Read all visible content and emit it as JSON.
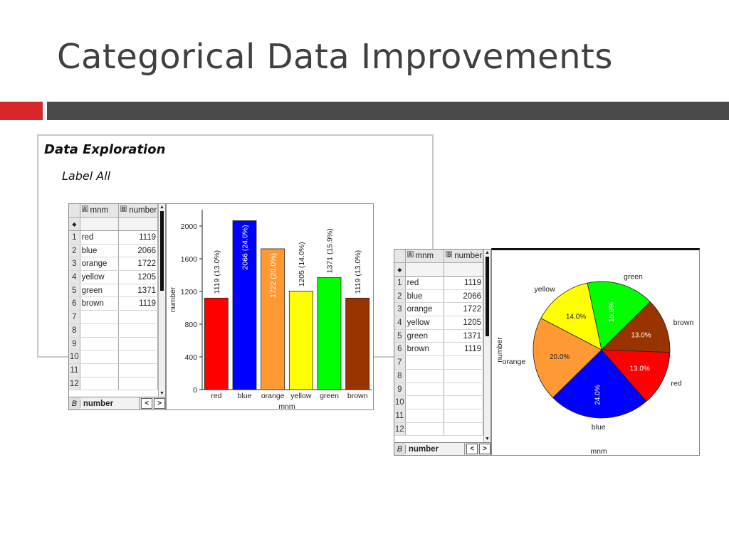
{
  "slide": {
    "title": "Categorical Data Improvements",
    "panel_heading": "Data Exploration",
    "panel_subheading": "Label All"
  },
  "colors": {
    "accent_red": "#d9262a",
    "header_bar": "#4a4a4a",
    "red": "#ff0000",
    "blue": "#0000ff",
    "orange": "#ff9933",
    "yellow": "#ffff00",
    "green": "#00ff00",
    "brown": "#993300"
  },
  "spreadsheet": {
    "col_a_key": "A",
    "col_a_name": "mnm",
    "col_b_key": "B",
    "col_b_name": "number",
    "formula_marker": "◆",
    "rows": [
      {
        "n": "1",
        "mnm": "red",
        "number": "1119"
      },
      {
        "n": "2",
        "mnm": "blue",
        "number": "2066"
      },
      {
        "n": "3",
        "mnm": "orange",
        "number": "1722"
      },
      {
        "n": "4",
        "mnm": "yellow",
        "number": "1205"
      },
      {
        "n": "5",
        "mnm": "green",
        "number": "1371"
      },
      {
        "n": "6",
        "mnm": "brown",
        "number": "1119"
      },
      {
        "n": "7",
        "mnm": "",
        "number": ""
      },
      {
        "n": "8",
        "mnm": "",
        "number": ""
      },
      {
        "n": "9",
        "mnm": "",
        "number": ""
      },
      {
        "n": "10",
        "mnm": "",
        "number": ""
      },
      {
        "n": "11",
        "mnm": "",
        "number": ""
      },
      {
        "n": "12",
        "mnm": "",
        "number": ""
      }
    ],
    "footer_cell_ref": "B",
    "footer_cell_name": "number",
    "nav_prev": "<",
    "nav_next": ">"
  },
  "chart_data": [
    {
      "type": "bar",
      "categories": [
        "red",
        "blue",
        "orange",
        "yellow",
        "green",
        "brown"
      ],
      "values": [
        1119,
        2066,
        1722,
        1205,
        1371,
        1119
      ],
      "data_labels": [
        "1119 (13.0%)",
        "2066 (24.0%)",
        "1722 (20.0%)",
        "1205 (14.0%)",
        "1371 (15.9%)",
        "1119 (13.0%)"
      ],
      "colors": [
        "#ff0000",
        "#0000ff",
        "#ff9933",
        "#ffff00",
        "#00ff00",
        "#993300"
      ],
      "xlabel": "mnm",
      "ylabel": "number",
      "ylim": [
        0,
        2200
      ],
      "yticks": [
        0,
        400,
        800,
        1200,
        1600,
        2000
      ],
      "grid": false
    },
    {
      "type": "pie",
      "categories": [
        "green",
        "brown",
        "red",
        "blue",
        "orange",
        "yellow"
      ],
      "values": [
        1371,
        1119,
        1119,
        2066,
        1722,
        1205
      ],
      "data_labels": [
        "15.9%",
        "13.0%",
        "13.0%",
        "24.0%",
        "20.0%",
        "14.0%"
      ],
      "colors": [
        "#00ff00",
        "#993300",
        "#ff0000",
        "#0000ff",
        "#ff9933",
        "#ffff00"
      ],
      "xlabel": "mnm",
      "ylabel": "number"
    }
  ]
}
